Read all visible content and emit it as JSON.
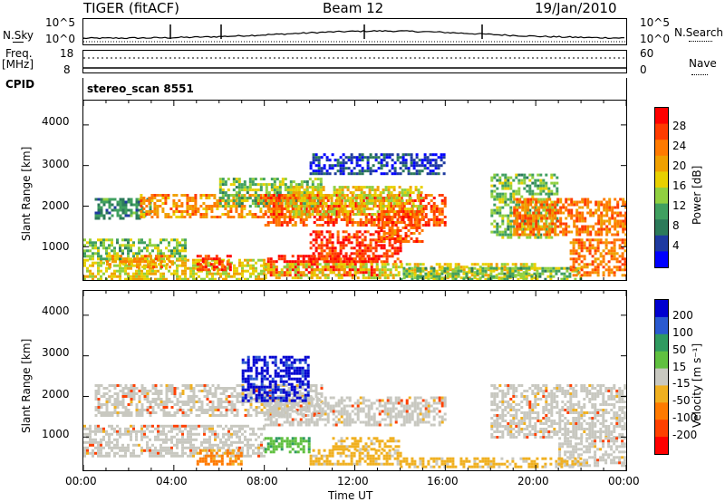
{
  "header": {
    "site": "TIGER (fitACF)",
    "beam": "Beam 12",
    "date": "19/Jan/2010"
  },
  "top_panels": {
    "nsky_label": "N.Sky",
    "nsky_ticks": [
      "10^5",
      "10^0"
    ],
    "nsearch_label": "N.Search",
    "nsearch_ticks": [
      "10^5",
      "10^0"
    ],
    "freq_label": "Freq.",
    "freq_unit": "[MHz]",
    "freq_ticks": [
      "18",
      "8"
    ],
    "nave_label": "Nave",
    "nave_ticks": [
      "60",
      "0"
    ],
    "cpid_label": "CPID",
    "cpid_value": "stereo_scan 8551"
  },
  "chart_data": [
    {
      "type": "heatmap",
      "name": "power-panel",
      "ylabel": "Slant Range [km]",
      "yticks": [
        "4000",
        "3000",
        "2000",
        "1000"
      ],
      "ylim": [
        180,
        4600
      ],
      "xlim": [
        0,
        24
      ],
      "colorbar": {
        "label": "Power [dB]",
        "ticks": [
          "28",
          "24",
          "20",
          "16",
          "12",
          "8",
          "4"
        ],
        "colors": [
          "#ff0000",
          "#ff3b00",
          "#ff7a00",
          "#f0a000",
          "#e8d000",
          "#90d040",
          "#40a060",
          "#2c7a5a",
          "#1e3aa0",
          "#0000ff"
        ]
      },
      "regions": [
        {
          "t0": 0.0,
          "t1": 8.0,
          "r0": 200,
          "r1": 700,
          "level": 16
        },
        {
          "t0": 0.0,
          "t1": 4.5,
          "r0": 700,
          "r1": 1200,
          "level": 12
        },
        {
          "t0": 1.0,
          "t1": 4.0,
          "r0": 500,
          "r1": 800,
          "level": 20
        },
        {
          "t0": 5.0,
          "t1": 6.5,
          "r0": 400,
          "r1": 800,
          "level": 26
        },
        {
          "t0": 0.5,
          "t1": 3.0,
          "r0": 1700,
          "r1": 2200,
          "level": 8
        },
        {
          "t0": 2.5,
          "t1": 10.0,
          "r0": 1700,
          "r1": 2300,
          "level": 20
        },
        {
          "t0": 6.0,
          "t1": 10.5,
          "r0": 2000,
          "r1": 2700,
          "level": 12
        },
        {
          "t0": 8.0,
          "t1": 16.0,
          "r0": 1500,
          "r1": 2300,
          "level": 24
        },
        {
          "t0": 9.0,
          "t1": 15.0,
          "r0": 1800,
          "r1": 2500,
          "level": 16
        },
        {
          "t0": 8.0,
          "t1": 13.0,
          "r0": 300,
          "r1": 800,
          "level": 28
        },
        {
          "t0": 10.0,
          "t1": 14.0,
          "r0": 600,
          "r1": 1400,
          "level": 26
        },
        {
          "t0": 13.0,
          "t1": 15.0,
          "r0": 1100,
          "r1": 1900,
          "level": 24
        },
        {
          "t0": 8.0,
          "t1": 20.0,
          "r0": 200,
          "r1": 600,
          "level": 16
        },
        {
          "t0": 14.0,
          "t1": 22.0,
          "r0": 200,
          "r1": 500,
          "level": 12
        },
        {
          "t0": 18.0,
          "t1": 21.0,
          "r0": 1200,
          "r1": 2800,
          "level": 12
        },
        {
          "t0": 19.0,
          "t1": 24.0,
          "r0": 1300,
          "r1": 2200,
          "level": 22
        },
        {
          "t0": 21.5,
          "t1": 24.0,
          "r0": 300,
          "r1": 1200,
          "level": 22
        },
        {
          "t0": 10.0,
          "t1": 16.0,
          "r0": 2800,
          "r1": 3300,
          "level": 4
        }
      ]
    },
    {
      "type": "heatmap",
      "name": "velocity-panel",
      "ylabel": "Slant Range [km]",
      "yticks": [
        "4000",
        "3000",
        "2000",
        "1000"
      ],
      "ylim": [
        180,
        4600
      ],
      "xlim": [
        0,
        24
      ],
      "xlabel": "Time UT",
      "xticks": [
        "00:00",
        "04:00",
        "08:00",
        "12:00",
        "16:00",
        "20:00",
        "00:00"
      ],
      "colorbar": {
        "label": "Velocity [m s⁻¹]",
        "ticks": [
          "200",
          "100",
          "50",
          "15",
          "-15",
          "-50",
          "-100",
          "-200"
        ],
        "colors": [
          "#0000d0",
          "#2a5ad0",
          "#2f9a60",
          "#60c040",
          "#c8c8c0",
          "#f0b020",
          "#ff7a00",
          "#ff4000",
          "#ff0000"
        ]
      },
      "regions": [
        {
          "t0": 0.5,
          "t1": 10.5,
          "r0": 1500,
          "r1": 2300,
          "vel": 0
        },
        {
          "t0": 0.0,
          "t1": 8.0,
          "r0": 500,
          "r1": 1300,
          "vel": 0
        },
        {
          "t0": 8.0,
          "t1": 16.0,
          "r0": 1300,
          "r1": 2000,
          "vel": 0
        },
        {
          "t0": 18.0,
          "t1": 24.0,
          "r0": 1000,
          "r1": 2300,
          "vel": 0
        },
        {
          "t0": 21.0,
          "t1": 24.0,
          "r0": 300,
          "r1": 1000,
          "vel": 0
        },
        {
          "t0": 7.0,
          "t1": 10.0,
          "r0": 1900,
          "r1": 3000,
          "vel": 200
        },
        {
          "t0": 8.0,
          "t1": 10.0,
          "r0": 600,
          "r1": 1000,
          "vel": 50
        },
        {
          "t0": 10.0,
          "t1": 14.0,
          "r0": 300,
          "r1": 700,
          "vel": -50
        },
        {
          "t0": 11.0,
          "t1": 14.0,
          "r0": 700,
          "r1": 1000,
          "vel": -50
        },
        {
          "t0": 14.0,
          "t1": 22.0,
          "r0": 250,
          "r1": 500,
          "vel": -50
        },
        {
          "t0": 5.0,
          "t1": 7.0,
          "r0": 300,
          "r1": 700,
          "vel": -100
        }
      ]
    }
  ]
}
